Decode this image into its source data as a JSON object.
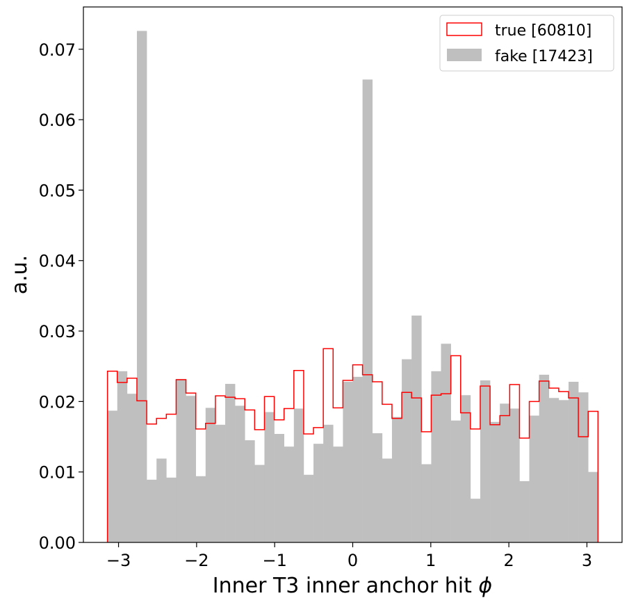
{
  "chart_data": {
    "type": "histogram",
    "xlabel": "Inner T3 inner anchor hit ",
    "xlabel_symbol": "ϕ",
    "ylabel": "a.u.",
    "xlim": [
      -3.45,
      3.45
    ],
    "ylim": [
      0,
      0.076
    ],
    "x_ticks": [
      -3,
      -2,
      -1,
      0,
      1,
      2,
      3
    ],
    "x_tick_labels": [
      "−3",
      "−2",
      "−1",
      "0",
      "1",
      "2",
      "3"
    ],
    "y_ticks": [
      0.0,
      0.01,
      0.02,
      0.03,
      0.04,
      0.05,
      0.06,
      0.07
    ],
    "y_tick_labels": [
      "0.00",
      "0.01",
      "0.02",
      "0.03",
      "0.04",
      "0.05",
      "0.06",
      "0.07"
    ],
    "bin_range": [
      -3.1416,
      3.1416
    ],
    "n_bins": 50,
    "legend_position": "top-right",
    "series": [
      {
        "name": "true [60810]",
        "style": "step",
        "color": "#ff0000",
        "values": [
          0.0243,
          0.0227,
          0.0233,
          0.0201,
          0.0168,
          0.0176,
          0.0182,
          0.0231,
          0.0212,
          0.0161,
          0.0169,
          0.0208,
          0.0206,
          0.0204,
          0.0188,
          0.016,
          0.0207,
          0.0174,
          0.019,
          0.0244,
          0.0154,
          0.0163,
          0.0275,
          0.0191,
          0.023,
          0.0252,
          0.0238,
          0.0228,
          0.0196,
          0.0176,
          0.0213,
          0.0205,
          0.0157,
          0.0209,
          0.0211,
          0.0265,
          0.0184,
          0.0161,
          0.0222,
          0.0167,
          0.018,
          0.0224,
          0.0148,
          0.02,
          0.0229,
          0.0219,
          0.0214,
          0.0205,
          0.015,
          0.0186
        ]
      },
      {
        "name": "fake [17423]",
        "style": "filled",
        "color": "#bfbfbf",
        "values": [
          0.0187,
          0.0243,
          0.0211,
          0.0726,
          0.0089,
          0.0119,
          0.0092,
          0.0232,
          0.0208,
          0.0094,
          0.0191,
          0.0167,
          0.0225,
          0.0194,
          0.0145,
          0.011,
          0.0185,
          0.0154,
          0.0136,
          0.019,
          0.0096,
          0.014,
          0.0167,
          0.0136,
          0.0228,
          0.0235,
          0.0657,
          0.0155,
          0.0119,
          0.0178,
          0.026,
          0.0322,
          0.0111,
          0.0243,
          0.0282,
          0.0173,
          0.0209,
          0.0062,
          0.023,
          0.0171,
          0.0197,
          0.019,
          0.0087,
          0.018,
          0.0238,
          0.0205,
          0.0202,
          0.0228,
          0.0213,
          0.01
        ]
      }
    ]
  }
}
